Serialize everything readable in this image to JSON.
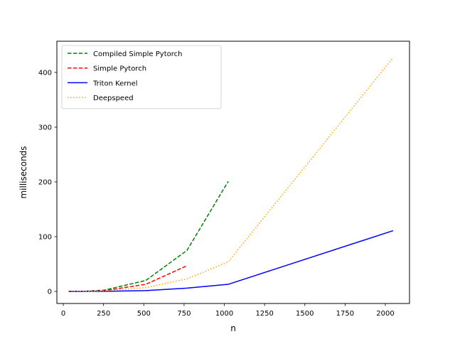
{
  "chart_data": {
    "type": "line",
    "title": "",
    "xlabel": "n",
    "ylabel": "milliseconds",
    "xlim": [
      -40,
      2150
    ],
    "ylim": [
      -22,
      457
    ],
    "x_ticks": [
      0,
      250,
      500,
      750,
      1000,
      1250,
      1500,
      1750,
      2000
    ],
    "y_ticks": [
      0,
      100,
      200,
      300,
      400
    ],
    "grid": false,
    "legend_position": "top-left",
    "series": [
      {
        "name": "Compiled Simple Pytorch",
        "color": "#008000",
        "style": "dashed",
        "x": [
          32,
          64,
          128,
          256,
          512,
          768,
          1024
        ],
        "y": [
          0,
          0.1,
          0.3,
          2.5,
          20,
          75,
          201
        ]
      },
      {
        "name": "Simple Pytorch",
        "color": "#ff0000",
        "style": "dashed",
        "x": [
          32,
          64,
          128,
          256,
          512,
          768
        ],
        "y": [
          0,
          0.1,
          0.3,
          1.5,
          13,
          47
        ]
      },
      {
        "name": "Triton Kernel",
        "color": "#0000ff",
        "style": "solid",
        "x": [
          32,
          64,
          128,
          256,
          512,
          768,
          1024,
          2048
        ],
        "y": [
          0,
          0,
          0.1,
          0.3,
          1.5,
          6,
          13,
          111
        ]
      },
      {
        "name": "Deepspeed",
        "color": "#ffa500",
        "style": "dotted",
        "x": [
          32,
          64,
          128,
          256,
          512,
          768,
          1024,
          2048
        ],
        "y": [
          0,
          0.1,
          0.2,
          1,
          7,
          23,
          54,
          427
        ]
      }
    ]
  }
}
